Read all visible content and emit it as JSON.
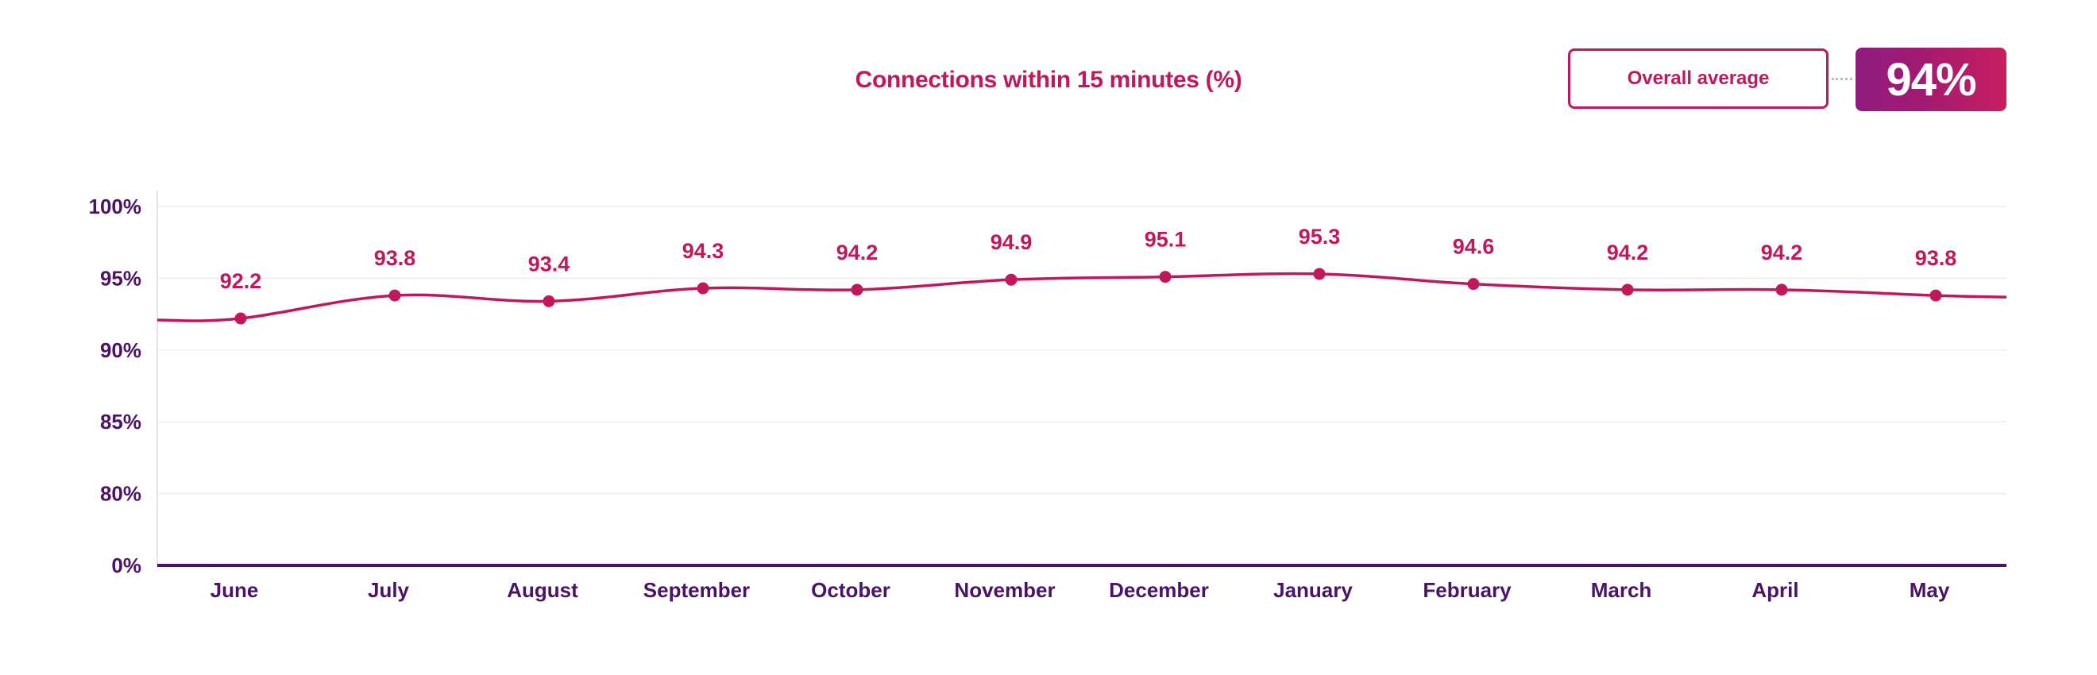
{
  "colors": {
    "accent": "#c2185b",
    "axis": "#4a1366",
    "gridline": "#ececf2",
    "badge_gradient_start": "#8e1c7e",
    "badge_gradient_end": "#c81e5e"
  },
  "overall_average": {
    "label": "Overall average",
    "value": "94%"
  },
  "chart_data": {
    "type": "line",
    "title": "Connections within 15 minutes (%)",
    "xlabel": "",
    "ylabel": "",
    "categories": [
      "June",
      "July",
      "August",
      "September",
      "October",
      "November",
      "December",
      "January",
      "February",
      "March",
      "April",
      "May"
    ],
    "series": [
      {
        "values": [
          92.2,
          93.8,
          93.4,
          94.3,
          94.2,
          94.9,
          95.1,
          95.3,
          94.6,
          94.2,
          94.2,
          93.8
        ]
      }
    ],
    "data_labels": [
      "92.2",
      "93.8",
      "93.4",
      "94.3",
      "94.2",
      "94.9",
      "95.1",
      "95.3",
      "94.6",
      "94.2",
      "94.2",
      "93.8"
    ],
    "y_ticks": [
      {
        "value": 100,
        "label": "100%"
      },
      {
        "value": 95,
        "label": "95%"
      },
      {
        "value": 90,
        "label": "90%"
      },
      {
        "value": 85,
        "label": "85%"
      },
      {
        "value": 80,
        "label": "80%"
      },
      {
        "value": 0,
        "label": "0%"
      }
    ],
    "y_axis_break": true,
    "grid": true,
    "legend": "none"
  }
}
